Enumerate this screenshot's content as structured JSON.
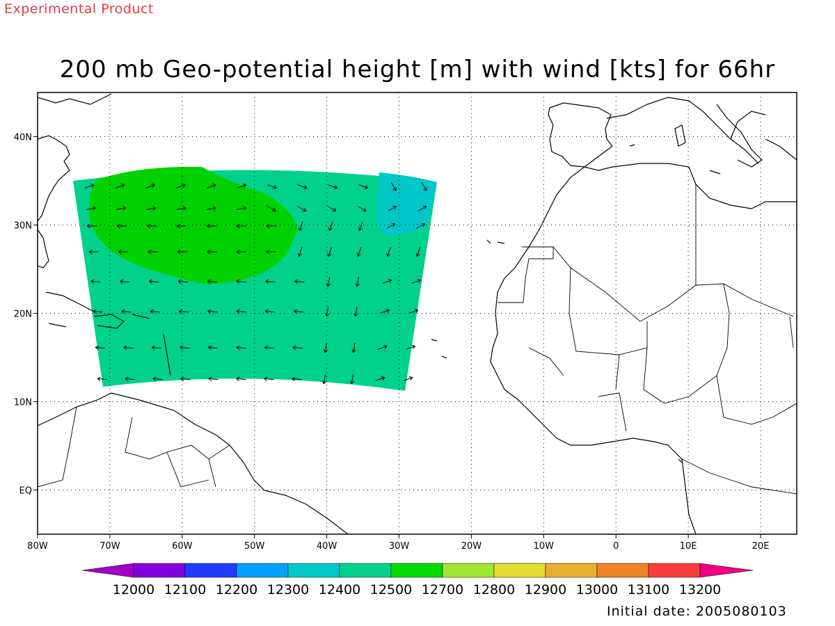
{
  "header": {
    "experimental_label": "Experimental Product",
    "title": "200 mb Geo-potential height [m] with wind [kts] for 66hr"
  },
  "footer": {
    "initial_date": "Initial date: 2005080103"
  },
  "map": {
    "lon_range": [
      -80,
      25
    ],
    "lat_range": [
      -5,
      45
    ],
    "lon_ticks": [
      {
        "value": -80,
        "label": "80W"
      },
      {
        "value": -70,
        "label": "70W"
      },
      {
        "value": -60,
        "label": "60W"
      },
      {
        "value": -50,
        "label": "50W"
      },
      {
        "value": -40,
        "label": "40W"
      },
      {
        "value": -30,
        "label": "30W"
      },
      {
        "value": -20,
        "label": "20W"
      },
      {
        "value": -10,
        "label": "10W"
      },
      {
        "value": 0,
        "label": "0"
      },
      {
        "value": 10,
        "label": "10E"
      },
      {
        "value": 20,
        "label": "20E"
      }
    ],
    "lat_ticks": [
      {
        "value": 40,
        "label": "40N"
      },
      {
        "value": 30,
        "label": "30N"
      },
      {
        "value": 20,
        "label": "20N"
      },
      {
        "value": 10,
        "label": "10N"
      },
      {
        "value": 0,
        "label": "EQ"
      }
    ],
    "grid": "dotted",
    "field_colors": {
      "12400": "#00c8c8",
      "12500": "#00d28c",
      "12700": "#00d200"
    }
  },
  "colorbar": {
    "colors": [
      "#a000c8",
      "#8200dc",
      "#1e3cff",
      "#00a0ff",
      "#00c8c8",
      "#00d28c",
      "#00dc00",
      "#a0e632",
      "#e6dc32",
      "#e6af2d",
      "#f08228",
      "#fa3c3c",
      "#f00082"
    ],
    "labels": [
      "12000",
      "12100",
      "12200",
      "12300",
      "12400",
      "12500",
      "12700",
      "12800",
      "12900",
      "13000",
      "13100",
      "13200"
    ]
  }
}
